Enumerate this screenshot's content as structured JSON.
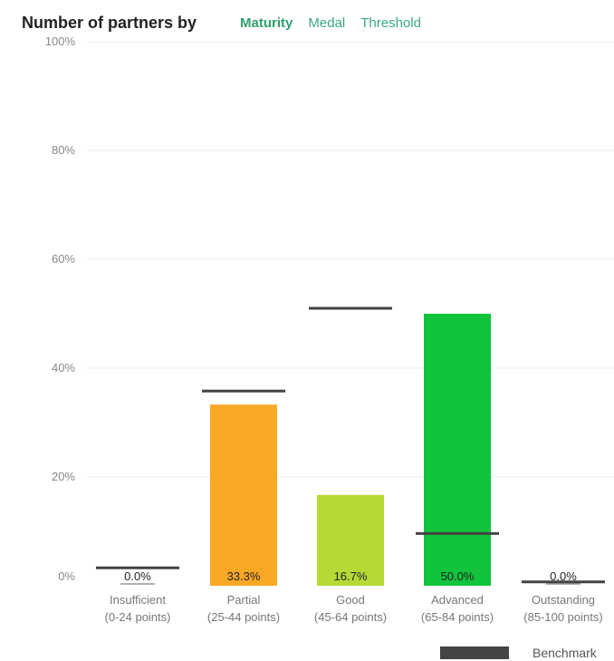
{
  "header": {
    "title": "Number of partners by",
    "tabs": [
      {
        "label": "Maturity",
        "active": true
      },
      {
        "label": "Medal",
        "active": false
      },
      {
        "label": "Threshold",
        "active": false
      }
    ]
  },
  "colors": {
    "insufficient": "#ffffff",
    "partial": "#f9a825",
    "good": "#b5d935",
    "advanced": "#11c43c",
    "outstanding": "#ffffff",
    "benchmark": "#444444",
    "tab": "#3aaa7c"
  },
  "chart_data": {
    "type": "bar",
    "title": "Number of partners by",
    "categories": [
      [
        "Insufficient",
        "(0-24 points)"
      ],
      [
        "Partial",
        "(25-44 points)"
      ],
      [
        "Good",
        "(45-64 points)"
      ],
      [
        "Advanced",
        "(65-84 points)"
      ],
      [
        "Outstanding",
        "(85-100 points)"
      ]
    ],
    "series": [
      {
        "values": [
          0,
          33.3,
          16.7,
          50.0,
          0
        ],
        "labels": [
          "0.0%",
          "33.3%",
          "16.7%",
          "50.0%",
          "0.0%"
        ]
      },
      {
        "name": "Benchmark",
        "values": [
          3.3,
          35.8,
          51.0,
          9.6,
          0.7
        ]
      }
    ],
    "yticks": [
      "0%",
      "20%",
      "40%",
      "60%",
      "80%",
      "100%"
    ],
    "ylim": [
      0,
      100
    ],
    "grid": true,
    "legend": "bottom-right"
  }
}
